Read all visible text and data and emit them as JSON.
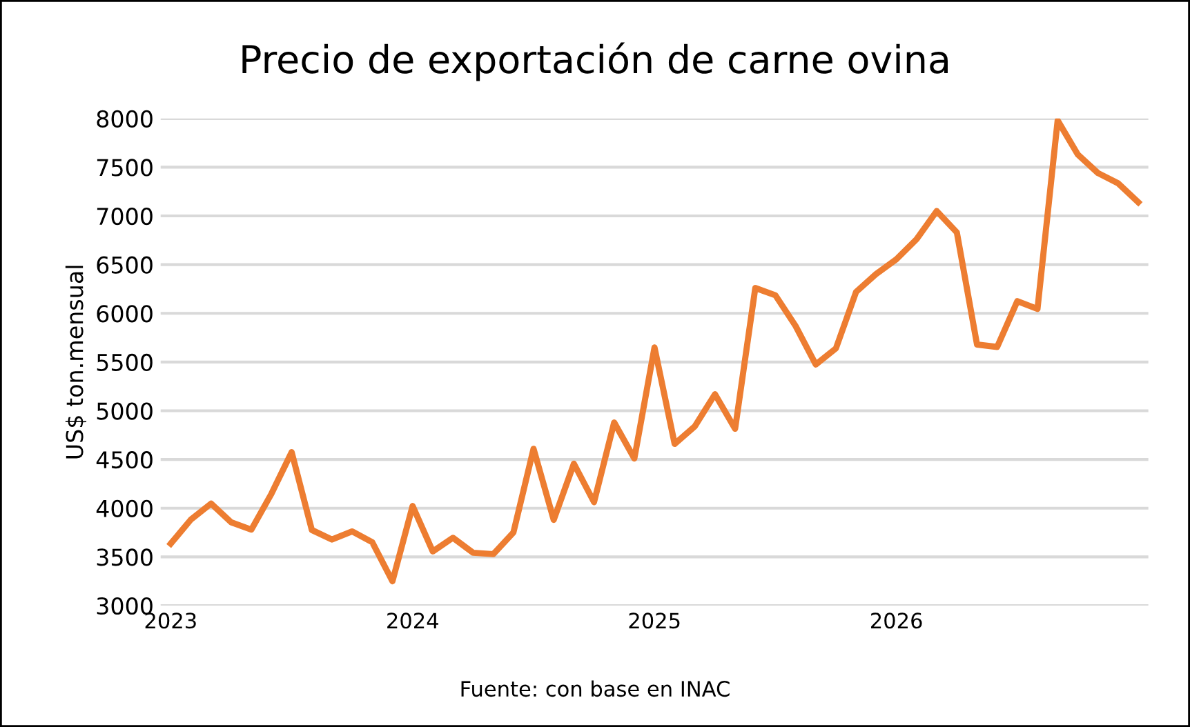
{
  "chart_data": {
    "type": "line",
    "title": "Precio de exportación de carne ovina",
    "ylabel": "US$ ton.mensual",
    "categories": [
      "2023",
      null,
      null,
      null,
      null,
      null,
      null,
      null,
      null,
      null,
      null,
      null,
      "2024",
      null,
      null,
      null,
      null,
      null,
      null,
      null,
      null,
      null,
      null,
      null,
      "2025",
      null,
      null,
      null,
      null,
      null,
      null,
      null,
      null,
      null,
      null,
      null,
      "2026",
      null,
      null,
      null,
      null,
      null,
      null,
      null,
      null,
      null,
      null,
      null,
      null
    ],
    "series": [
      {
        "color": "#ed7d31",
        "values": [
          3636,
          3883,
          4047,
          3855,
          3780,
          4150,
          4575,
          3776,
          3678,
          3762,
          3650,
          3250,
          4023,
          3556,
          3696,
          3542,
          3528,
          3750,
          4610,
          3880,
          4457,
          4062,
          4880,
          4510,
          5650,
          4660,
          4840,
          5170,
          4815,
          6260,
          6185,
          5870,
          5475,
          5640,
          6220,
          6405,
          6555,
          6760,
          7050,
          6830,
          5680,
          5655,
          6125,
          6045,
          7980,
          7630,
          7440,
          7335,
          7140
        ]
      }
    ],
    "ylim": [
      3000,
      8000
    ],
    "yticks": [
      3000,
      3500,
      4000,
      4500,
      5000,
      5500,
      6000,
      6500,
      7000,
      7500,
      8000
    ],
    "grid": "y",
    "legend": false,
    "marker": "none",
    "line_style": "solid",
    "annotations": [
      "Fuente: con base en INAC"
    ]
  }
}
